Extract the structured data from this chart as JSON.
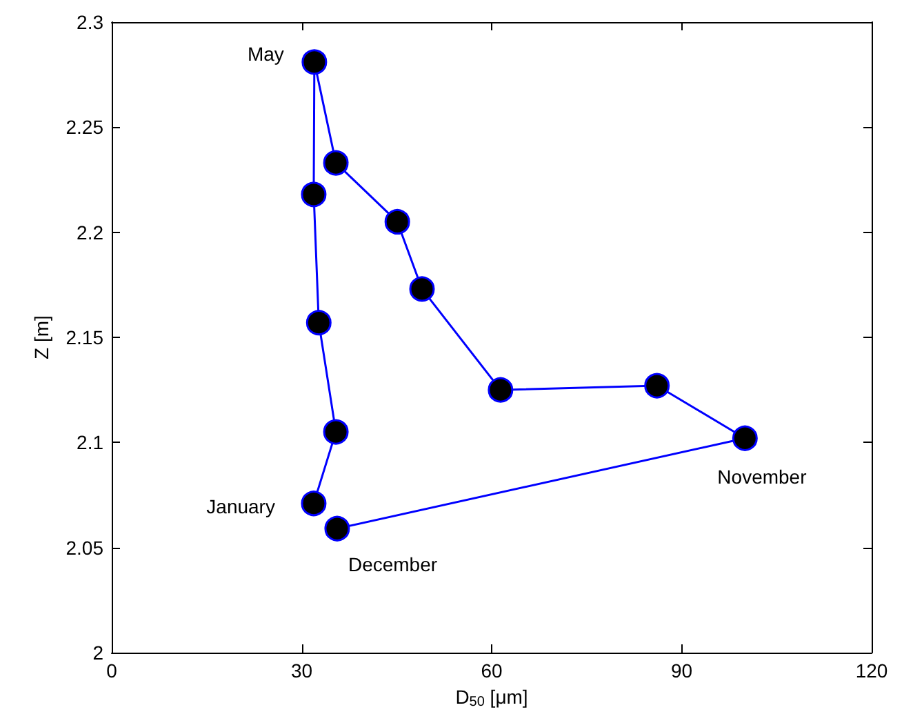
{
  "chart_data": {
    "type": "line",
    "xlabel": "D$_{50}$ [μm]",
    "ylabel": "Z [m]",
    "xlim": [
      0,
      120
    ],
    "xticks": [
      0,
      30,
      60,
      90,
      120
    ],
    "ylim": [
      2,
      2.3
    ],
    "yticks": [
      2,
      2.05,
      2.1,
      2.15,
      2.2,
      2.25,
      2.3
    ],
    "grid": false,
    "marker": "circle",
    "line_style": "solid",
    "series": [
      {
        "color": "#0000ff",
        "x": [
          31.9,
          35.4,
          32.7,
          31.9,
          32.0,
          35.4,
          45.1,
          49.0,
          61.4,
          86.1,
          100.0,
          35.6
        ],
        "values": [
          2.071,
          2.105,
          2.157,
          2.218,
          2.281,
          2.233,
          2.205,
          2.173,
          2.125,
          2.127,
          2.102,
          2.059
        ]
      }
    ],
    "annotations": [
      {
        "text": "May",
        "x": 32.0,
        "y": 2.281
      },
      {
        "text": "January",
        "x": 31.9,
        "y": 2.071
      },
      {
        "text": "December",
        "x": 35.6,
        "y": 2.059
      },
      {
        "text": "November",
        "x": 100.0,
        "y": 2.102
      }
    ]
  }
}
